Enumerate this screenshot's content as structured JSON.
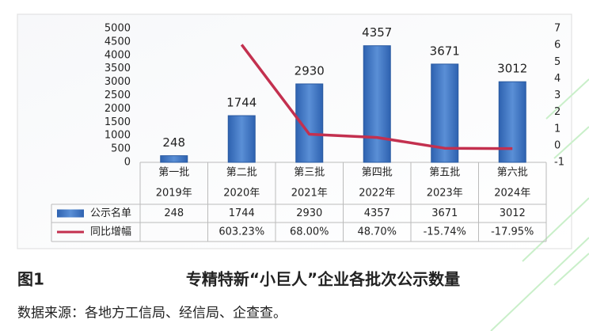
{
  "chart_data": {
    "type": "bar",
    "figure_label": "图1",
    "title": "专精特新“小巨人”企业各批次公示数量",
    "source": "数据来源：各地方工信局、经信局、企查查。",
    "categories": [
      "第一批",
      "第二批",
      "第三批",
      "第四批",
      "第五批",
      "第六批"
    ],
    "category_years": [
      "2019年",
      "2020年",
      "2021年",
      "2022年",
      "2023年",
      "2024年"
    ],
    "series": [
      {
        "name": "公示名单",
        "type": "bar",
        "color": "#3f74c0",
        "values": [
          248,
          1744,
          2930,
          4357,
          3671,
          3012
        ]
      },
      {
        "name": "同比增幅",
        "type": "line",
        "axis": "y2",
        "color": "#c3304f",
        "values": [
          null,
          6.0323,
          0.68,
          0.487,
          -0.1574,
          -0.1795
        ],
        "value_labels": [
          null,
          "603.23%",
          "68.00%",
          "48.70%",
          "-15.74%",
          "-17.95%"
        ]
      }
    ],
    "ylim": [
      0,
      5000
    ],
    "yticks": [
      0,
      500,
      1000,
      1500,
      2000,
      2500,
      3000,
      3500,
      4000,
      4500,
      5000
    ],
    "y2lim": [
      -1,
      7
    ],
    "y2ticks": [
      -1,
      0,
      1,
      2,
      3,
      4,
      5,
      6,
      7
    ]
  }
}
